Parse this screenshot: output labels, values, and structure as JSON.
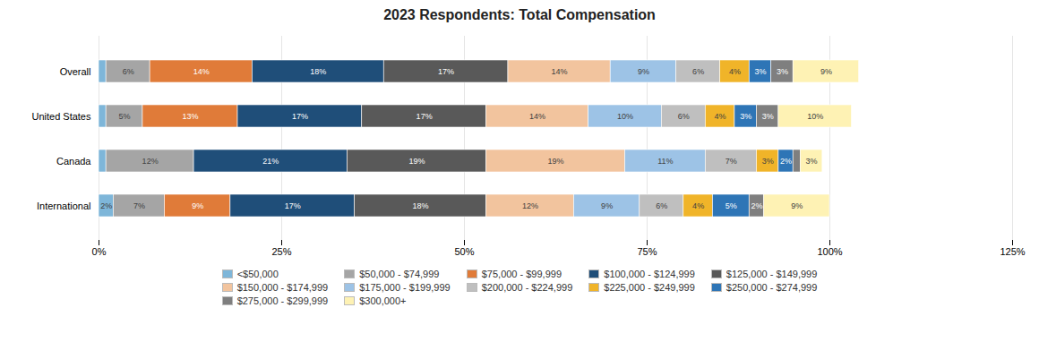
{
  "chart_data": {
    "type": "bar",
    "orientation": "horizontal",
    "stacked": true,
    "title": "2023 Respondents: Total Compensation",
    "categories": [
      "Overall",
      "United States",
      "Canada",
      "International"
    ],
    "series": [
      {
        "name": "<$50,000",
        "color": "#7eb6d9",
        "values": [
          1,
          1,
          1,
          2
        ],
        "value_labels": [
          null,
          null,
          null,
          "2%"
        ]
      },
      {
        "name": "$50,000 - $74,999",
        "color": "#a5a5a5",
        "values": [
          6,
          5,
          12,
          7
        ],
        "value_labels": [
          "6%",
          "5%",
          "12%",
          "7%"
        ]
      },
      {
        "name": "$75,000 - $99,999",
        "color": "#e07b39",
        "values": [
          14,
          13,
          0,
          9
        ],
        "value_labels": [
          "14%",
          "13%",
          null,
          "9%"
        ]
      },
      {
        "name": "$100,000 - $124,999",
        "color": "#1f4e79",
        "values": [
          18,
          17,
          21,
          17
        ],
        "value_labels": [
          "18%",
          "17%",
          "21%",
          "17%"
        ]
      },
      {
        "name": "$125,000 - $149,999",
        "color": "#595959",
        "values": [
          17,
          17,
          19,
          18
        ],
        "value_labels": [
          "17%",
          "17%",
          "19%",
          "18%"
        ]
      },
      {
        "name": "$150,000 - $174,999",
        "color": "#f2c49e",
        "values": [
          14,
          14,
          19,
          12
        ],
        "value_labels": [
          "14%",
          "14%",
          "19%",
          "12%"
        ]
      },
      {
        "name": "$175,000 - $199,999",
        "color": "#9dc3e6",
        "values": [
          9,
          10,
          11,
          9
        ],
        "value_labels": [
          "9%",
          "10%",
          "11%",
          "9%"
        ]
      },
      {
        "name": "$200,000 - $224,999",
        "color": "#bfbfbf",
        "values": [
          6,
          6,
          7,
          6
        ],
        "value_labels": [
          "6%",
          "6%",
          "7%",
          "6%"
        ]
      },
      {
        "name": "$225,000 - $249,999",
        "color": "#f0b429",
        "values": [
          4,
          4,
          3,
          4
        ],
        "value_labels": [
          "4%",
          "4%",
          "3%",
          "4%"
        ]
      },
      {
        "name": "$250,000 - $274,999",
        "color": "#2e75b6",
        "values": [
          3,
          3,
          2,
          5
        ],
        "value_labels": [
          "3%",
          "3%",
          "2%",
          "5%"
        ]
      },
      {
        "name": "$275,000 - $299,999",
        "color": "#7f7f7f",
        "values": [
          3,
          3,
          1,
          2
        ],
        "value_labels": [
          "3%",
          "3%",
          null,
          "2%"
        ]
      },
      {
        "name": "$300,000+",
        "color": "#fef2b4",
        "values": [
          9,
          10,
          3,
          9
        ],
        "value_labels": [
          "9%",
          "10%",
          "3%",
          "9%"
        ]
      }
    ],
    "xlim": [
      0,
      125
    ],
    "xticks": [
      {
        "value": 0,
        "label": "0%"
      },
      {
        "value": 25,
        "label": "25%"
      },
      {
        "value": 50,
        "label": "50%"
      },
      {
        "value": 75,
        "label": "75%"
      },
      {
        "value": 100,
        "label": "100%"
      },
      {
        "value": 125,
        "label": "125%"
      }
    ],
    "grid": true,
    "data_labels": true,
    "legend": "bottom"
  }
}
